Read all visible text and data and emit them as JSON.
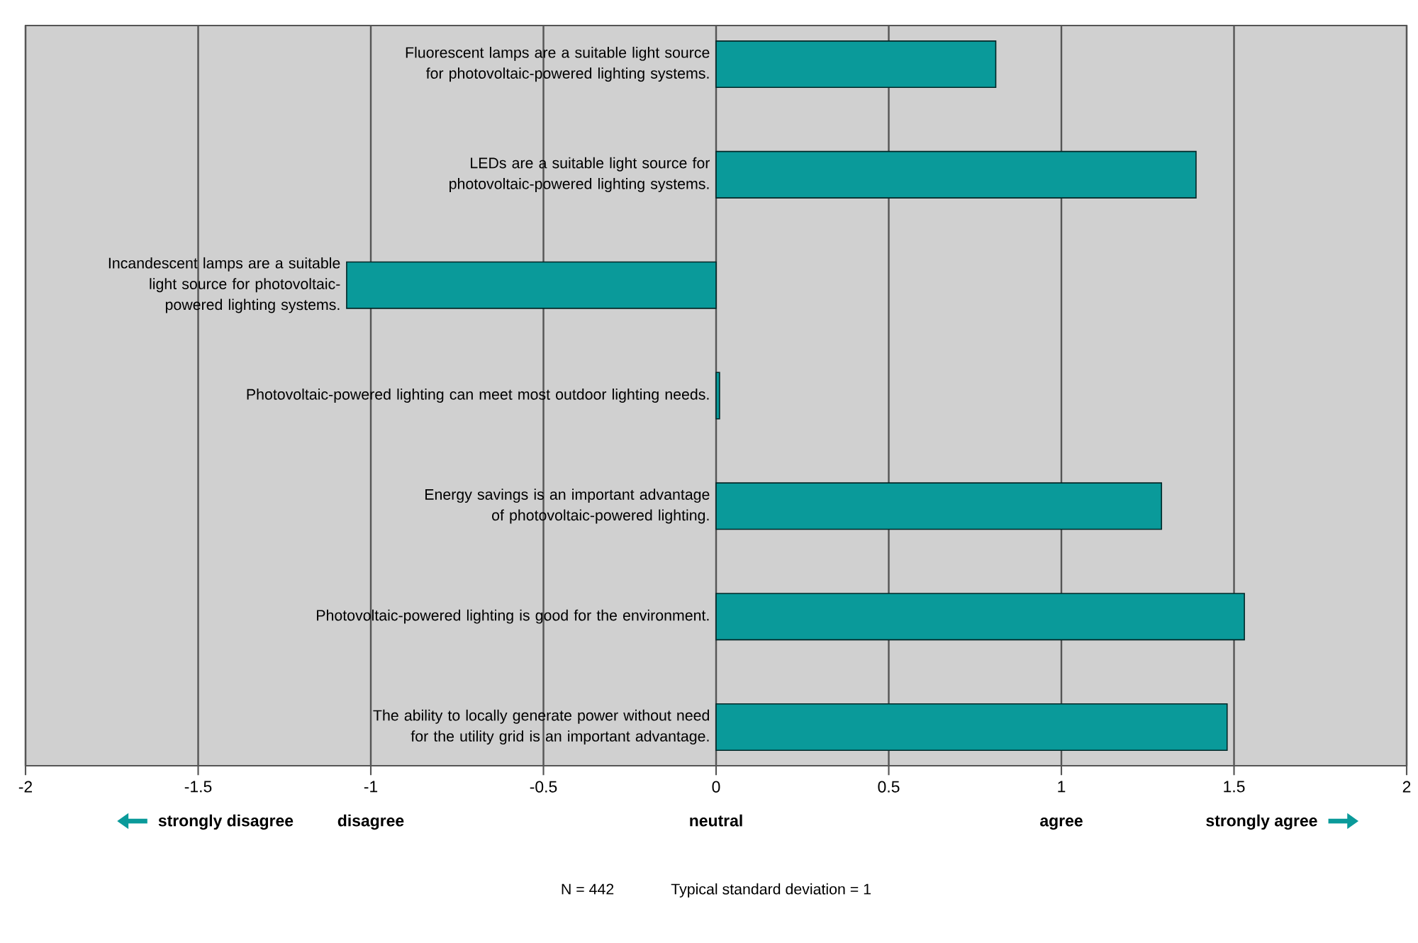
{
  "chart_data": {
    "type": "bar",
    "orientation": "horizontal",
    "categories": [
      "Fluorescent lamps are a suitable light source for photovoltaic-powered lighting systems.",
      "LEDs are a suitable light source for photovoltaic-powered lighting systems.",
      "Incandescent lamps are a suitable light source for photovoltaic-powered lighting systems.",
      "Photovoltaic-powered lighting can meet most outdoor lighting needs.",
      "Energy savings is an important advantage of photovoltaic-powered lighting.",
      "Photovoltaic-powered lighting is good for the environment.",
      "The ability to locally generate power without need for the utility grid is an important advantage."
    ],
    "values": [
      0.81,
      1.39,
      -1.07,
      0.01,
      1.29,
      1.53,
      1.48
    ],
    "color": "#0a9a9a",
    "xlim": [
      -2,
      2
    ],
    "xticks": [
      -2,
      -1.5,
      -1,
      -0.5,
      0,
      0.5,
      1,
      1.5,
      2
    ],
    "grid": "x",
    "annotations": [
      "strongly disagree",
      "disagree",
      "neutral",
      "agree",
      "strongly agree",
      "N = 442",
      "Typical standard deviation = 1"
    ]
  }
}
